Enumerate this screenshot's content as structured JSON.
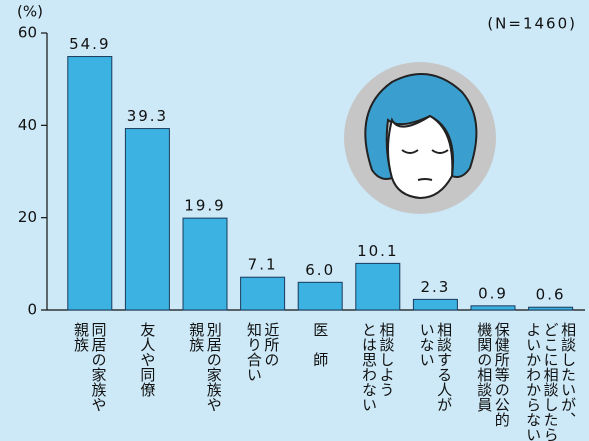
{
  "chart_data": {
    "type": "bar",
    "unit_label": "(%)",
    "annotation": "(N=1460)",
    "categories": [
      [
        "同居の家族や",
        "親族"
      ],
      [
        "友人や同僚"
      ],
      [
        "別居の家族や",
        "親族"
      ],
      [
        "近所の",
        "知り合い"
      ],
      [
        "医　師"
      ],
      [
        "相談しよう",
        "とは思わない"
      ],
      [
        "相談する人が",
        "いない"
      ],
      [
        "保健所等の公的",
        "機関の相談員"
      ],
      [
        "相談したいが、",
        "どこに相談したら",
        "よいかわからない"
      ]
    ],
    "values": [
      54.9,
      39.3,
      19.9,
      7.1,
      6.0,
      10.1,
      2.3,
      0.9,
      0.6
    ],
    "value_labels": [
      "54.9",
      "39.3",
      "19.9",
      "7.1",
      "6.0",
      "10.1",
      "2.3",
      "0.9",
      "0.6"
    ],
    "color": "#3cb2e2",
    "ylim": [
      0,
      60
    ],
    "yticks": [
      0,
      20,
      40,
      60
    ]
  }
}
